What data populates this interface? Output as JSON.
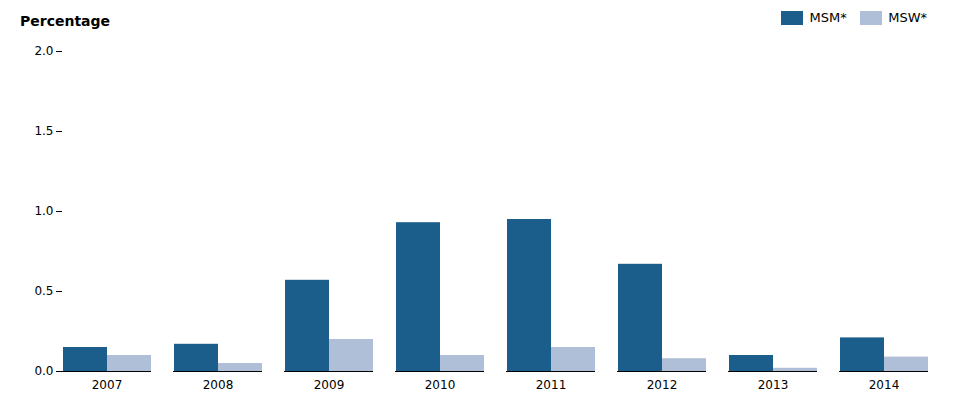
{
  "chart_data": {
    "type": "bar",
    "ylabel": "Percentage",
    "categories": [
      "2007",
      "2008",
      "2009",
      "2010",
      "2011",
      "2012",
      "2013",
      "2014"
    ],
    "series": [
      {
        "name": "MSM*",
        "color": "#1b5e8c",
        "values": [
          0.15,
          0.17,
          0.57,
          0.93,
          0.95,
          0.67,
          0.1,
          0.21
        ]
      },
      {
        "name": "MSW*",
        "color": "#b0bfd8",
        "values": [
          0.1,
          0.05,
          0.2,
          0.1,
          0.15,
          0.08,
          0.02,
          0.09
        ]
      }
    ],
    "ylim": [
      0,
      2.0
    ],
    "yticks": [
      {
        "value": 0.0,
        "label": "0.0"
      },
      0.5,
      {
        "value": 1.0,
        "label": "1.0"
      },
      1.5,
      {
        "value": 2.0,
        "label": "2.0"
      }
    ],
    "grid": false,
    "legend": "upper right"
  }
}
